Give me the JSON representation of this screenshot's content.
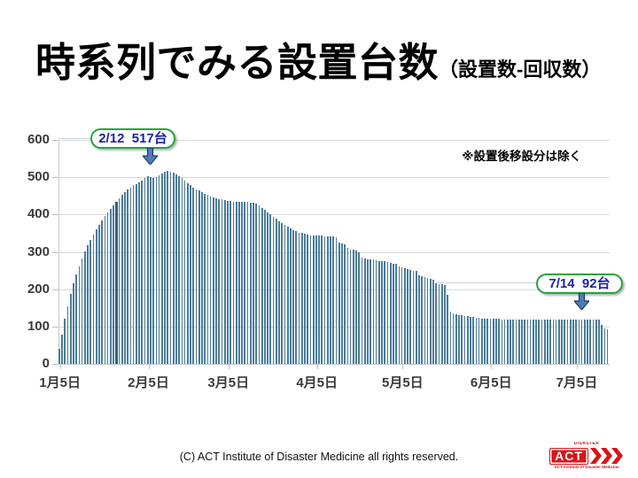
{
  "slide": {
    "title": "時系列でみる設置台数",
    "title_suffix": "（設置数-回収数）",
    "note": "※設置後移設分は除く",
    "footer": "(C)  ACT Institute of Disaster Medicine all rights reserved."
  },
  "annotations": {
    "peak": {
      "label": "2/12  517台",
      "date": "2/12",
      "value": 517
    },
    "last": {
      "label": "7/14  92台",
      "date": "7/14",
      "value": 92
    }
  },
  "logo": {
    "top_text": "DISASTER",
    "act_text": "ACT",
    "bottom_text": "ACT Institute of Disaster Medicine",
    "color": "#d8151a"
  },
  "colors": {
    "bar": "#4a7c9b",
    "bar_highlight": "#2e6183",
    "grid": "#d6dade",
    "callout_border": "#27a437",
    "callout_text": "#1d23a8",
    "arrow_fill": "#4f7db3",
    "arrow_border": "#1e3a66"
  },
  "chart_data": {
    "type": "bar",
    "title": "時系列でみる設置台数（設置数-回収数）",
    "xlabel": "",
    "ylabel": "",
    "ylim": [
      0,
      600
    ],
    "y_ticks": [
      0,
      100,
      200,
      300,
      400,
      500,
      600
    ],
    "grid": true,
    "x_tick_labels": [
      "1月5日",
      "2月5日",
      "3月5日",
      "4月5日",
      "5月5日",
      "6月5日",
      "7月5日"
    ],
    "x_tick_day_offsets": [
      0,
      31,
      59,
      90,
      120,
      151,
      181
    ],
    "start_date": "1/5",
    "unit": "台",
    "highlight_index": 20,
    "annotations": [
      {
        "date": "2/12",
        "value": 517
      },
      {
        "date": "7/14",
        "value": 92
      }
    ],
    "values": [
      40,
      78,
      120,
      155,
      188,
      215,
      240,
      262,
      283,
      302,
      318,
      333,
      347,
      360,
      372,
      384,
      395,
      405,
      414,
      424,
      434,
      443,
      452,
      460,
      467,
      473,
      478,
      482,
      487,
      492,
      497,
      502,
      500,
      498,
      500,
      505,
      510,
      514,
      517,
      515,
      512,
      508,
      503,
      497,
      491,
      485,
      479,
      473,
      468,
      464,
      460,
      456,
      452,
      448,
      445,
      443,
      441,
      440,
      438,
      437,
      436,
      435,
      435,
      434,
      434,
      433,
      433,
      432,
      431,
      430,
      424,
      418,
      412,
      406,
      400,
      394,
      388,
      382,
      377,
      373,
      368,
      363,
      359,
      355,
      352,
      350,
      348,
      346,
      345,
      344,
      344,
      343,
      343,
      342,
      342,
      341,
      341,
      340,
      325,
      322,
      320,
      310,
      307,
      305,
      303,
      300,
      285,
      283,
      281,
      280,
      279,
      278,
      276,
      275,
      274,
      272,
      270,
      269,
      268,
      260,
      258,
      256,
      254,
      252,
      250,
      248,
      237,
      235,
      233,
      230,
      228,
      226,
      215,
      214,
      213,
      212,
      185,
      140,
      135,
      133,
      131,
      130,
      129,
      127,
      126,
      125,
      124,
      123,
      122,
      122,
      121,
      121,
      120,
      120,
      120,
      119,
      119,
      119,
      119,
      118,
      118,
      118,
      118,
      118,
      118,
      118,
      118,
      118,
      118,
      118,
      118,
      118,
      118,
      118,
      118,
      118,
      118,
      118,
      118,
      118,
      118,
      118,
      118,
      118,
      118,
      118,
      118,
      118,
      118,
      119,
      104,
      96,
      92
    ]
  }
}
